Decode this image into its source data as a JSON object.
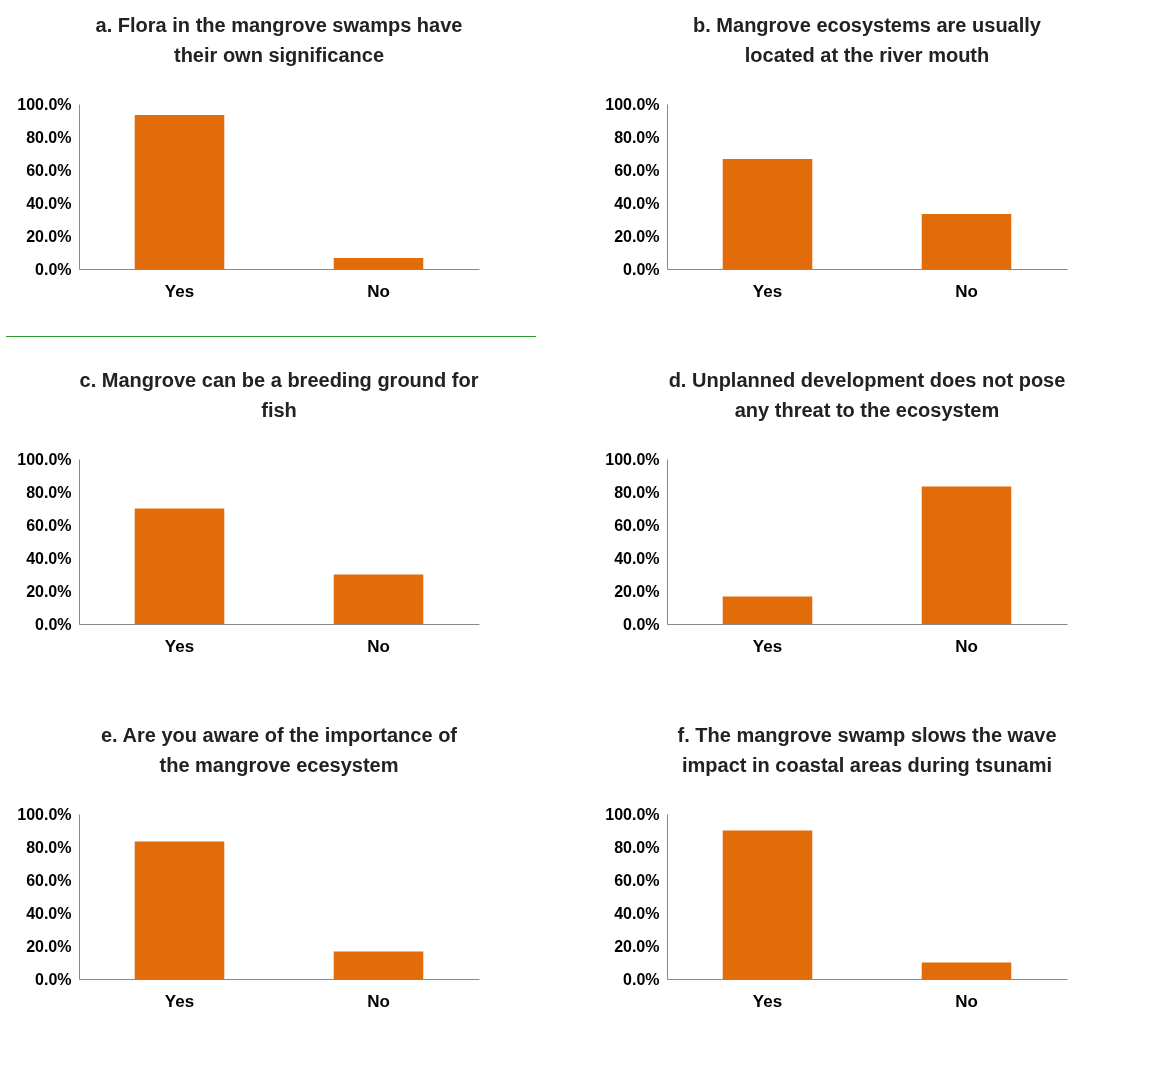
{
  "chart_data": [
    {
      "type": "bar",
      "title": "a. Flora in the mangrove swamps have their own significance",
      "categories": [
        "Yes",
        "No"
      ],
      "values": [
        93.3,
        6.7
      ],
      "color": "#e36c0a",
      "ylim": [
        0,
        100
      ],
      "yticks": [
        {
          "value": 0,
          "label": "0.0%"
        },
        {
          "value": 20,
          "label": "20.0%"
        },
        {
          "value": 40,
          "label": "40.0%"
        },
        {
          "value": 60,
          "label": "60.0%"
        },
        {
          "value": 80,
          "label": "80.0%"
        },
        {
          "value": 100,
          "label": "100.0%"
        }
      ],
      "grid": false
    },
    {
      "type": "bar",
      "title": "b. Mangrove ecosystems are usually located at the river mouth",
      "categories": [
        "Yes",
        "No"
      ],
      "values": [
        66.7,
        33.3
      ],
      "color": "#e36c0a",
      "ylim": [
        0,
        100
      ],
      "yticks": [
        {
          "value": 0,
          "label": "0.0%"
        },
        {
          "value": 20,
          "label": "20.0%"
        },
        {
          "value": 40,
          "label": "40.0%"
        },
        {
          "value": 60,
          "label": "60.0%"
        },
        {
          "value": 80,
          "label": "80.0%"
        },
        {
          "value": 100,
          "label": "100.0%"
        }
      ],
      "grid": false
    },
    {
      "type": "bar",
      "title": "c. Mangrove can be a breeding ground for fish",
      "categories": [
        "Yes",
        "No"
      ],
      "values": [
        70,
        30
      ],
      "color": "#e36c0a",
      "ylim": [
        0,
        100
      ],
      "yticks": [
        {
          "value": 0,
          "label": "0.0%"
        },
        {
          "value": 20,
          "label": "20.0%"
        },
        {
          "value": 40,
          "label": "40.0%"
        },
        {
          "value": 60,
          "label": "60.0%"
        },
        {
          "value": 80,
          "label": "80.0%"
        },
        {
          "value": 100,
          "label": "100.0%"
        }
      ],
      "grid": false
    },
    {
      "type": "bar",
      "title": "d. Unplanned development does not pose any threat to the ecosystem",
      "categories": [
        "Yes",
        "No"
      ],
      "values": [
        16.7,
        83.3
      ],
      "color": "#e36c0a",
      "ylim": [
        0,
        100
      ],
      "yticks": [
        {
          "value": 0,
          "label": "0.0%"
        },
        {
          "value": 20,
          "label": "20.0%"
        },
        {
          "value": 40,
          "label": "40.0%"
        },
        {
          "value": 60,
          "label": "60.0%"
        },
        {
          "value": 80,
          "label": "80.0%"
        },
        {
          "value": 100,
          "label": "100.0%"
        }
      ],
      "grid": false
    },
    {
      "type": "bar",
      "title": "e. Are you aware of the importance of the mangrove ecesystem",
      "categories": [
        "Yes",
        "No"
      ],
      "values": [
        83.3,
        16.7
      ],
      "color": "#e36c0a",
      "ylim": [
        0,
        100
      ],
      "yticks": [
        {
          "value": 0,
          "label": "0.0%"
        },
        {
          "value": 20,
          "label": "20.0%"
        },
        {
          "value": 40,
          "label": "40.0%"
        },
        {
          "value": 60,
          "label": "60.0%"
        },
        {
          "value": 80,
          "label": "80.0%"
        },
        {
          "value": 100,
          "label": "100.0%"
        }
      ],
      "grid": false
    },
    {
      "type": "bar",
      "title": "f. The mangrove swamp slows the wave impact in coastal areas during tsunami",
      "categories": [
        "Yes",
        "No"
      ],
      "values": [
        90,
        10
      ],
      "color": "#e36c0a",
      "ylim": [
        0,
        100
      ],
      "yticks": [
        {
          "value": 0,
          "label": "0.0%"
        },
        {
          "value": 20,
          "label": "20.0%"
        },
        {
          "value": 40,
          "label": "40.0%"
        },
        {
          "value": 60,
          "label": "60.0%"
        },
        {
          "value": 80,
          "label": "80.0%"
        },
        {
          "value": 100,
          "label": "100.0%"
        }
      ],
      "grid": false
    }
  ]
}
